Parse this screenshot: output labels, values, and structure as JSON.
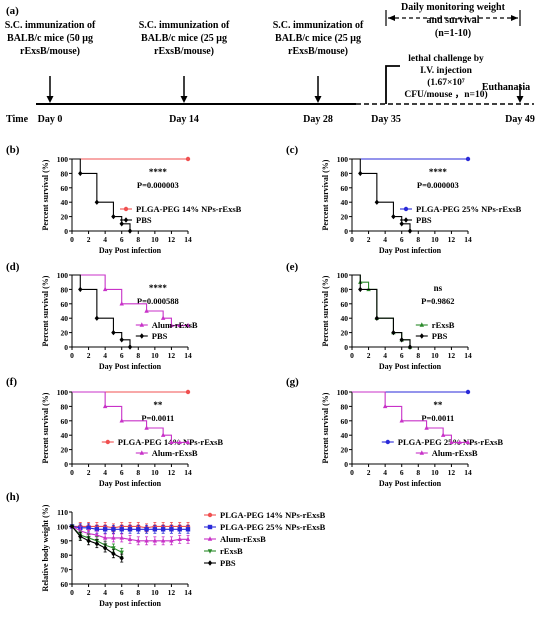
{
  "timeline": {
    "panel_label": "(a)",
    "events": [
      {
        "label": "Day 0",
        "text": [
          "S.C. immunization of",
          "BALB/c mice (50 μg",
          "rExsB/mouse)"
        ]
      },
      {
        "label": "Day 14",
        "text": [
          "S.C. immunization of",
          "BALB/c mice (25 μg",
          "rExsB/mouse)"
        ]
      },
      {
        "label": "Day 28",
        "text": [
          "S.C. immunization of",
          "BALB/c mice (25 μg",
          "rExsB/mouse)"
        ]
      },
      {
        "label": "Day 35",
        "text": [
          "lethal challenge by",
          "I.V. injection",
          "(1.67×10⁷",
          "CFU/mouse ，n=10)"
        ]
      },
      {
        "label": "Day 49",
        "text": [
          "Euthanasia"
        ]
      }
    ],
    "time_label": "Time",
    "monitor_text": [
      "Daily monitoring weight",
      "and survival",
      "(n=1-10)"
    ]
  },
  "colors": {
    "red": "#f05050",
    "blue": "#2a2ad8",
    "magenta": "#c832c8",
    "green": "#2a8a2a",
    "black": "#000000"
  },
  "chart_data": [
    {
      "panel": "(b)",
      "type": "line",
      "step": true,
      "ylabel": "Percent survival (%)",
      "xlabel": "Day Post infection",
      "xlim": [
        0,
        14
      ],
      "ylim": [
        0,
        100
      ],
      "xticks": [
        0,
        2,
        4,
        6,
        8,
        10,
        12,
        14
      ],
      "yticks": [
        0,
        20,
        40,
        60,
        80,
        100
      ],
      "sig": "****",
      "pvalue": "P=0.000003",
      "series": [
        {
          "name": "PLGA-PEG 14% NPs-rExsB",
          "color": "#f05050",
          "marker": "circle",
          "x": [
            0,
            14
          ],
          "y": [
            100,
            100
          ]
        },
        {
          "name": "PBS",
          "color": "#000000",
          "marker": "diamond",
          "x": [
            0,
            1,
            3,
            5,
            6,
            7
          ],
          "y": [
            100,
            80,
            40,
            20,
            10,
            0
          ]
        }
      ]
    },
    {
      "panel": "(c)",
      "type": "line",
      "step": true,
      "ylabel": "Percent survival (%)",
      "xlabel": "Day Post infection",
      "xlim": [
        0,
        14
      ],
      "ylim": [
        0,
        100
      ],
      "xticks": [
        0,
        2,
        4,
        6,
        8,
        10,
        12,
        14
      ],
      "yticks": [
        0,
        20,
        40,
        60,
        80,
        100
      ],
      "sig": "****",
      "pvalue": "P=0.000003",
      "series": [
        {
          "name": "PLGA-PEG 25% NPs-rExsB",
          "color": "#2a2ad8",
          "marker": "circle",
          "x": [
            0,
            14
          ],
          "y": [
            100,
            100
          ]
        },
        {
          "name": "PBS",
          "color": "#000000",
          "marker": "diamond",
          "x": [
            0,
            1,
            3,
            5,
            6,
            7
          ],
          "y": [
            100,
            80,
            40,
            20,
            10,
            0
          ]
        }
      ]
    },
    {
      "panel": "(d)",
      "type": "line",
      "step": true,
      "ylabel": "Percent survival (%)",
      "xlabel": "Day Post infection",
      "xlim": [
        0,
        14
      ],
      "ylim": [
        0,
        100
      ],
      "xticks": [
        0,
        2,
        4,
        6,
        8,
        10,
        12,
        14
      ],
      "yticks": [
        0,
        20,
        40,
        60,
        80,
        100
      ],
      "sig": "****",
      "pvalue": "P=0.000588",
      "series": [
        {
          "name": "Alum-rExsB",
          "color": "#c832c8",
          "marker": "triangle",
          "x": [
            0,
            4,
            6,
            9,
            11,
            12,
            13,
            14
          ],
          "y": [
            100,
            80,
            60,
            50,
            40,
            30,
            30,
            30
          ]
        },
        {
          "name": "PBS",
          "color": "#000000",
          "marker": "diamond",
          "x": [
            0,
            1,
            3,
            5,
            6,
            7
          ],
          "y": [
            100,
            80,
            40,
            20,
            10,
            0
          ]
        }
      ]
    },
    {
      "panel": "(e)",
      "type": "line",
      "step": true,
      "ylabel": "Percent survival (%)",
      "xlabel": "Day Post infection",
      "xlim": [
        0,
        14
      ],
      "ylim": [
        0,
        100
      ],
      "xticks": [
        0,
        2,
        4,
        6,
        8,
        10,
        12,
        14
      ],
      "yticks": [
        0,
        20,
        40,
        60,
        80,
        100
      ],
      "sig": "ns",
      "pvalue": "P=0.9862",
      "series": [
        {
          "name": "rExsB",
          "color": "#2a8a2a",
          "marker": "triangle",
          "x": [
            0,
            1,
            2,
            3,
            5,
            6,
            7
          ],
          "y": [
            100,
            90,
            80,
            40,
            20,
            10,
            0
          ]
        },
        {
          "name": "PBS",
          "color": "#000000",
          "marker": "diamond",
          "x": [
            0,
            1,
            3,
            5,
            6,
            7
          ],
          "y": [
            100,
            80,
            40,
            20,
            10,
            0
          ]
        }
      ]
    },
    {
      "panel": "(f)",
      "type": "line",
      "step": true,
      "ylabel": "Percent survival (%)",
      "xlabel": "Day Post infection",
      "xlim": [
        0,
        14
      ],
      "ylim": [
        0,
        100
      ],
      "xticks": [
        0,
        2,
        4,
        6,
        8,
        10,
        12,
        14
      ],
      "yticks": [
        0,
        20,
        40,
        60,
        80,
        100
      ],
      "sig": "**",
      "pvalue": "P=0.0011",
      "series": [
        {
          "name": "PLGA-PEG 14% NPs-rExsB",
          "color": "#f05050",
          "marker": "circle",
          "x": [
            0,
            14
          ],
          "y": [
            100,
            100
          ]
        },
        {
          "name": "Alum-rExsB",
          "color": "#c832c8",
          "marker": "triangle",
          "x": [
            0,
            4,
            6,
            9,
            11,
            12,
            13,
            14
          ],
          "y": [
            100,
            80,
            60,
            50,
            40,
            30,
            30,
            30
          ]
        }
      ]
    },
    {
      "panel": "(g)",
      "type": "line",
      "step": true,
      "ylabel": "Percent survival (%)",
      "xlabel": "Day Post infection",
      "xlim": [
        0,
        14
      ],
      "ylim": [
        0,
        100
      ],
      "xticks": [
        0,
        2,
        4,
        6,
        8,
        10,
        12,
        14
      ],
      "yticks": [
        0,
        20,
        40,
        60,
        80,
        100
      ],
      "sig": "**",
      "pvalue": "P=0.0011",
      "series": [
        {
          "name": "PLGA-PEG 25% NPs-rExsB",
          "color": "#2a2ad8",
          "marker": "circle",
          "x": [
            0,
            14
          ],
          "y": [
            100,
            100
          ]
        },
        {
          "name": "Alum-rExsB",
          "color": "#c832c8",
          "marker": "triangle",
          "x": [
            0,
            4,
            6,
            9,
            11,
            12,
            13,
            14
          ],
          "y": [
            100,
            80,
            60,
            50,
            40,
            30,
            30,
            30
          ]
        }
      ]
    },
    {
      "panel": "(h)",
      "type": "line",
      "step": false,
      "ylabel": "Relative body weight (%)",
      "xlabel": "Day post infection",
      "xlim": [
        0,
        14
      ],
      "ylim": [
        60,
        110
      ],
      "xticks": [
        0,
        2,
        4,
        6,
        8,
        10,
        12,
        14
      ],
      "yticks": [
        60,
        70,
        80,
        90,
        100,
        110
      ],
      "series": [
        {
          "name": "PLGA-PEG 14% NPs-rExsB",
          "color": "#f05050",
          "marker": "circle",
          "x": [
            0,
            1,
            2,
            3,
            4,
            5,
            6,
            7,
            8,
            9,
            10,
            11,
            12,
            13,
            14
          ],
          "y": [
            100,
            100,
            100,
            100,
            100,
            99,
            100,
            100,
            100,
            99,
            100,
            100,
            100,
            100,
            100
          ]
        },
        {
          "name": "PLGA-PEG 25% NPs-rExsB",
          "color": "#2a2ad8",
          "marker": "square",
          "x": [
            0,
            1,
            2,
            3,
            4,
            5,
            6,
            7,
            8,
            9,
            10,
            11,
            12,
            13,
            14
          ],
          "y": [
            100,
            99,
            99,
            98,
            98,
            98,
            98,
            98,
            98,
            98,
            98,
            98,
            98,
            98,
            98
          ]
        },
        {
          "name": "Alum-rExsB",
          "color": "#c832c8",
          "marker": "triangle",
          "x": [
            0,
            1,
            2,
            3,
            4,
            5,
            6,
            7,
            8,
            9,
            10,
            11,
            12,
            13,
            14
          ],
          "y": [
            100,
            97,
            95,
            94,
            92,
            92,
            92,
            91,
            90,
            90,
            90,
            90,
            90,
            91,
            91
          ]
        },
        {
          "name": "rExsB",
          "color": "#2a8a2a",
          "marker": "triangle-down",
          "x": [
            0,
            1,
            2,
            3,
            4,
            5,
            6
          ],
          "y": [
            100,
            94,
            92,
            90,
            87,
            85,
            82
          ]
        },
        {
          "name": "PBS",
          "color": "#000000",
          "marker": "diamond",
          "x": [
            0,
            1,
            2,
            3,
            4,
            5,
            6
          ],
          "y": [
            100,
            93,
            90,
            88,
            85,
            81,
            78
          ]
        }
      ]
    }
  ]
}
